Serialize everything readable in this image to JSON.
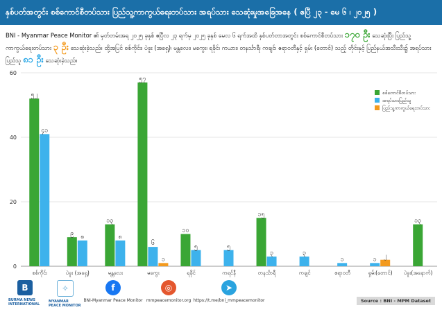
{
  "title": "နှစ်ပတ်အတွင်း စစ်ကောင်စီတပ်သား ပြည်သူ့ကာကွယ်ရေးတပ်သား အရပ်သား သေဆုံးမှုအခြေအနေ ( ဧပြီ ၂၃ - မေ ၆ ၊ ၂၀၂၅ )",
  "subtitle": {
    "part1": "BNI - Myanmar Peace Monitor ၏ မှတ်တမ်းအရ ၂၀၂၅ ခုနှစ် ဧပြီလ ၂၃ ရက်မှ ၂၀၂၅ ခုနှစ် မေလ ၆ ရက်အထိ နှစ်ပတ်တာအတွင်း စစ်ကောင်စီတပ်သား",
    "num_sac": "၁၇၀ ဦး",
    "part2": " သေဆုံးပြီး ပြည်သူ့ကာကွယ်ရေးတပ်သား",
    "num_pdf": "၃ ဦး",
    "part3": " သေဆုံးခဲ့သည်။ ထို့အပြင် စစ်ကိုင်း၊ ပဲခူး (အရှေ့)၊ မန္တလေး၊ မကွေး၊ ရခိုင်၊ ကယား၊ တနင်္သာရီ၊ ကချင်၊ ဧရာဝတီနှင့် ရှမ်း (တောင်) သည့် တိုင်းနှင့် ပြည်နယ်အသီးသီး၌ အရပ်သား ပြည်သူ",
    "num_civ": "၈၁ ဦး",
    "part4": " သေဆုံးခဲ့သည်။"
  },
  "legend": [
    {
      "label": "စစ်ကောင်စီတပ်သား",
      "color": "#3aa635"
    },
    {
      "label": "အရပ်သားပြည်သူ",
      "color": "#3db2ec"
    },
    {
      "label": "ပြည်သူ့ကာကွယ်ရေးတပ်သား",
      "color": "#f39a1e"
    }
  ],
  "chart_data": {
    "type": "bar",
    "title": "",
    "xlabel": "",
    "ylabel": "",
    "ylim": [
      0,
      60
    ],
    "yticks": [
      "0",
      "20",
      "40",
      "60"
    ],
    "categories": [
      "စစ်ကိုင်း",
      "ပဲခူး (အရှေ့)",
      "မန္တလေး",
      "မကွေး",
      "ရခိုင်",
      "ကရင်နီ",
      "တနင်္သာရီ",
      "ကချင်",
      "ဧရာဝတီ",
      "ရှမ်း(တောင်)",
      "ပဲခူး(အနောက်)"
    ],
    "series": [
      {
        "name": "စစ်ကောင်စီတပ်သား",
        "color": "#3aa635",
        "values": [
          52,
          9,
          13,
          57,
          10,
          null,
          15,
          null,
          null,
          null,
          13
        ],
        "labels": [
          "၅၂",
          "၉",
          "၁၃",
          "၅၇",
          "၁၀",
          "",
          "၁၅",
          "",
          "",
          "",
          "၁၃"
        ]
      },
      {
        "name": "အရပ်သားပြည်သူ",
        "color": "#3db2ec",
        "values": [
          41,
          8,
          8,
          6,
          5,
          5,
          3,
          3,
          1,
          1,
          null
        ],
        "labels": [
          "၄၁",
          "၈",
          "၈",
          "၆",
          "၅",
          "၅",
          "၃",
          "၃",
          "၁",
          "၁",
          ""
        ]
      },
      {
        "name": "ပြည်သူ့ကာကွယ်ရေးတပ်သား",
        "color": "#f39a1e",
        "values": [
          null,
          null,
          null,
          1,
          null,
          null,
          null,
          null,
          null,
          2,
          null
        ],
        "labels": [
          "",
          "",
          "",
          "၁",
          "",
          "",
          "",
          "",
          "",
          "၂",
          ""
        ]
      }
    ],
    "grid": true,
    "legend_position": "top-right"
  },
  "footer": {
    "org1": "BURMA NEWS INTERNATIONAL",
    "org2": "MYANMAR PEACE MONITOR",
    "facebook": "BNI-Myanmar Peace Monitor",
    "website": "mmpeacemonitor.org",
    "telegram": "https://t.me/bni_mmpeacemonitor",
    "source": "Source : BNI - MPM Dataset"
  }
}
